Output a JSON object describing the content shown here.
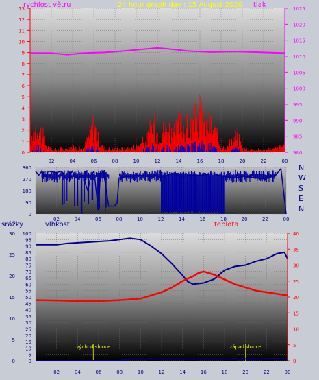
{
  "colors": {
    "wind": "#ff00ff",
    "wind_gust": "#ff0000",
    "wind_avg": "#0000cc",
    "pressure": "#ff00ff",
    "title": "#ffff00",
    "direction": "#0000a0",
    "humidity": "#000090",
    "temperature": "#ff0000",
    "rain": "#000080",
    "sun": "#c8c800",
    "bg": "#c8ccd4"
  },
  "header": {
    "left_label": "rychlost větru",
    "title": "24 hour graph day : 15 August 2020",
    "right_label": "tlak"
  },
  "direction_labels": [
    "N",
    "W",
    "S",
    "E",
    "N"
  ],
  "bottom_labels": {
    "rain": "srážky",
    "humidity": "vlhkost",
    "temperature": "teplota",
    "sunrise": "východ slunce",
    "sunset": "západ slunce"
  },
  "chart_data": [
    {
      "type": "line",
      "name": "wind-pressure",
      "x_ticks": [
        "02",
        "04",
        "06",
        "08",
        "10",
        "12",
        "14",
        "16",
        "18",
        "20",
        "22",
        "00"
      ],
      "xlim": [
        0,
        24
      ],
      "y_left_ticks": [
        "0",
        "1",
        "2",
        "3",
        "4",
        "5",
        "6",
        "7",
        "8",
        "9",
        "10",
        "11",
        "12",
        "13"
      ],
      "ylim_left": [
        0,
        13
      ],
      "y_right_ticks": [
        "980",
        "985",
        "990",
        "995",
        "1000",
        "1005",
        "1010",
        "1015",
        "1020",
        "1025"
      ],
      "ylim_right": [
        980,
        1025
      ],
      "series": [
        {
          "name": "tlak",
          "axis": "right",
          "points": [
            [
              0,
              1011
            ],
            [
              2,
              1011
            ],
            [
              3.5,
              1010.5
            ],
            [
              5,
              1011
            ],
            [
              7,
              1011.2
            ],
            [
              9,
              1011.7
            ],
            [
              11,
              1012.3
            ],
            [
              12,
              1012.6
            ],
            [
              13,
              1012.3
            ],
            [
              15,
              1011.6
            ],
            [
              17,
              1011.3
            ],
            [
              19,
              1011.5
            ],
            [
              21,
              1011.3
            ],
            [
              22,
              1011.2
            ],
            [
              24,
              1011
            ]
          ]
        }
      ],
      "wind_profile": [
        [
          0,
          0.4
        ],
        [
          0.5,
          2.5
        ],
        [
          1,
          1.8
        ],
        [
          1.5,
          0.6
        ],
        [
          2,
          0.2
        ],
        [
          3,
          0.3
        ],
        [
          4,
          0.4
        ],
        [
          5,
          0.3
        ],
        [
          5.5,
          1.5
        ],
        [
          6,
          2.5
        ],
        [
          6.5,
          0.8
        ],
        [
          7,
          0.3
        ],
        [
          9,
          0.3
        ],
        [
          10,
          0.5
        ],
        [
          11,
          1.2
        ],
        [
          11.5,
          2.5
        ],
        [
          12,
          1.8
        ],
        [
          13,
          2.2
        ],
        [
          13.5,
          1.5
        ],
        [
          14,
          2.5
        ],
        [
          15,
          2.2
        ],
        [
          15.5,
          2.8
        ],
        [
          16,
          3.5
        ],
        [
          16.5,
          2.5
        ],
        [
          17,
          2.5
        ],
        [
          17.5,
          1.5
        ],
        [
          18,
          0.5
        ],
        [
          18.5,
          0.4
        ],
        [
          19,
          1.2
        ],
        [
          19.5,
          1.5
        ],
        [
          20,
          0.3
        ],
        [
          22,
          0.2
        ],
        [
          23,
          0.3
        ],
        [
          24,
          0.6
        ]
      ]
    },
    {
      "type": "line",
      "name": "wind-direction",
      "x_ticks": [
        "02",
        "04",
        "06",
        "08",
        "10",
        "12",
        "14",
        "16",
        "18",
        "20",
        "22",
        "00"
      ],
      "xlim": [
        0,
        24
      ],
      "y_ticks": [
        "0",
        "90",
        "180",
        "270",
        "360"
      ],
      "ylim": [
        0,
        360
      ],
      "series": [
        {
          "name": "direction",
          "points": [
            [
              0,
              330
            ],
            [
              0.3,
              300
            ],
            [
              0.6,
              330
            ],
            [
              1,
              290
            ],
            [
              1.2,
              330
            ],
            [
              2,
              320
            ],
            [
              2.5,
              330
            ],
            [
              3,
              260
            ],
            [
              3.5,
              330
            ],
            [
              4,
              270
            ],
            [
              4.5,
              300
            ],
            [
              5,
              180
            ],
            [
              5.3,
              300
            ],
            [
              5.6,
              330
            ],
            [
              6,
              30
            ],
            [
              6.2,
              300
            ],
            [
              6.5,
              330
            ],
            [
              7,
              60
            ],
            [
              7.5,
              60
            ],
            [
              7.8,
              80
            ],
            [
              8,
              280
            ],
            [
              9,
              290
            ],
            [
              10,
              300
            ],
            [
              11,
              290
            ],
            [
              11.5,
              300
            ],
            [
              12,
              280
            ],
            [
              13,
              310
            ],
            [
              14,
              290
            ],
            [
              15,
              300
            ],
            [
              16,
              300
            ],
            [
              17,
              310
            ],
            [
              18,
              290
            ],
            [
              19,
              280
            ],
            [
              20,
              290
            ],
            [
              21,
              280
            ],
            [
              22,
              270
            ],
            [
              23,
              300
            ],
            [
              23.5,
              350
            ],
            [
              24,
              0
            ]
          ]
        }
      ]
    },
    {
      "type": "line",
      "name": "humidity-temperature-rain",
      "x_ticks": [
        "02",
        "04",
        "06",
        "08",
        "10",
        "12",
        "14",
        "16",
        "18",
        "20",
        "22",
        "00"
      ],
      "xlim": [
        0,
        24
      ],
      "y_rain_ticks": [
        "0",
        "5",
        "10",
        "15",
        "20",
        "25",
        "30"
      ],
      "ylim_rain": [
        0,
        30
      ],
      "y_humidity_ticks": [
        "0",
        "5",
        "10",
        "15",
        "20",
        "25",
        "30",
        "35",
        "40",
        "45",
        "50",
        "55",
        "60",
        "65",
        "70",
        "75",
        "80",
        "85",
        "90",
        "95",
        "100"
      ],
      "ylim_humidity": [
        0,
        100
      ],
      "y_temperature_ticks": [
        "0",
        "5",
        "10",
        "15",
        "20",
        "25",
        "30",
        "35",
        "40"
      ],
      "ylim_temperature": [
        0,
        40
      ],
      "sunrise_hour": 5.5,
      "sunset_hour": 20,
      "series": [
        {
          "name": "vlhkost",
          "axis": "humidity",
          "points": [
            [
              0,
              91
            ],
            [
              2,
              91
            ],
            [
              3,
              92
            ],
            [
              5,
              93
            ],
            [
              7,
              94
            ],
            [
              8,
              95
            ],
            [
              9,
              96
            ],
            [
              10,
              95
            ],
            [
              11,
              90
            ],
            [
              12,
              84
            ],
            [
              13,
              76
            ],
            [
              14,
              67
            ],
            [
              14.5,
              62
            ],
            [
              15,
              60
            ],
            [
              16,
              61
            ],
            [
              17,
              64
            ],
            [
              18,
              71
            ],
            [
              19,
              74
            ],
            [
              20,
              75
            ],
            [
              21,
              78
            ],
            [
              22,
              80
            ],
            [
              23,
              84
            ],
            [
              23.7,
              85
            ],
            [
              24,
              80
            ]
          ]
        },
        {
          "name": "teplota",
          "axis": "temperature",
          "points": [
            [
              0,
              19
            ],
            [
              2,
              18.9
            ],
            [
              4,
              18.7
            ],
            [
              6,
              18.7
            ],
            [
              8,
              19
            ],
            [
              10,
              19.5
            ],
            [
              11,
              20.5
            ],
            [
              12,
              21.5
            ],
            [
              13,
              23
            ],
            [
              14,
              25
            ],
            [
              15,
              26.5
            ],
            [
              15.5,
              27.5
            ],
            [
              16,
              28
            ],
            [
              16.5,
              27.5
            ],
            [
              17,
              27
            ],
            [
              18,
              25.5
            ],
            [
              19,
              24
            ],
            [
              20,
              23
            ],
            [
              21,
              22
            ],
            [
              22,
              21.5
            ],
            [
              23,
              21
            ],
            [
              24,
              20.5
            ]
          ]
        },
        {
          "name": "srážky",
          "axis": "rain",
          "points": [
            [
              0,
              0
            ],
            [
              8,
              0
            ],
            [
              9,
              0.4
            ],
            [
              16,
              0.4
            ],
            [
              18,
              0.4
            ],
            [
              24,
              0.5
            ]
          ]
        }
      ]
    }
  ]
}
